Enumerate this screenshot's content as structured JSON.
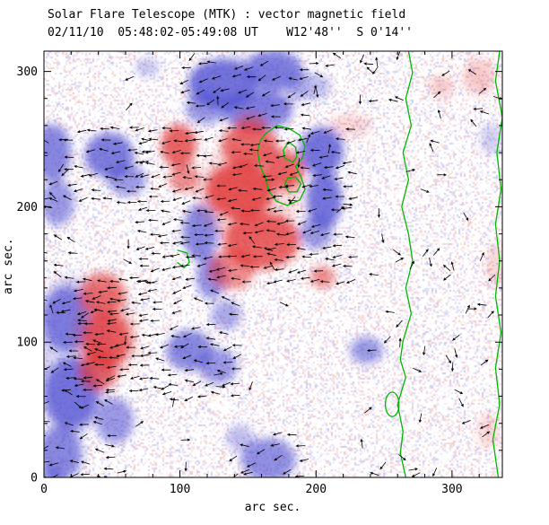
{
  "header": {
    "title": "Solar Flare Telescope (MTK) : vector magnetic field",
    "subtitle": "02/11/10  05:48:02-05:49:08 UT    W12'48''  S 0'14''"
  },
  "chart_data": {
    "type": "heatmap",
    "title": "Solar Flare Telescope (MTK) : vector magnetic field",
    "subtitle": "02/11/10  05:48:02-05:49:08 UT    W12'48''  S 0'14''",
    "xlabel": "arc sec.",
    "ylabel": "arc sec.",
    "xlim": [
      0,
      337
    ],
    "ylim": [
      0,
      315
    ],
    "xticks": [
      0,
      100,
      200,
      300
    ],
    "yticks": [
      0,
      100,
      200,
      300
    ],
    "minor_tick_step": 20,
    "grid": false,
    "legend": "none",
    "colors": {
      "positive": "#e03030",
      "negative": "#4848d0",
      "contour": "#00b800",
      "vector": "#000000",
      "axis": "#000000",
      "background": "#ffffff"
    },
    "blobs": [
      [
        -1,
        131,
        291,
        25,
        18,
        0.7
      ],
      [
        -1,
        169,
        301,
        21,
        15,
        0.65
      ],
      [
        -1,
        157,
        271,
        26,
        15,
        0.65
      ],
      [
        -1,
        119,
        273,
        15,
        12,
        0.55
      ],
      [
        -1,
        195,
        289,
        16,
        10,
        0.35
      ],
      [
        -1,
        150,
        290,
        45,
        22,
        0.2
      ],
      [
        -1,
        204,
        241,
        16,
        18,
        0.75
      ],
      [
        -1,
        206,
        205,
        13,
        21,
        0.75
      ],
      [
        -1,
        200,
        181,
        12,
        12,
        0.55
      ],
      [
        -1,
        48,
        238,
        18,
        17,
        0.7
      ],
      [
        -1,
        61,
        220,
        14,
        12,
        0.55
      ],
      [
        -1,
        6,
        240,
        14,
        21,
        0.65
      ],
      [
        -1,
        10,
        203,
        12,
        17,
        0.55
      ],
      [
        -1,
        115,
        181,
        13,
        21,
        0.65
      ],
      [
        -1,
        123,
        148,
        11,
        16,
        0.6
      ],
      [
        -1,
        134,
        120,
        11,
        11,
        0.45
      ],
      [
        -1,
        16,
        117,
        17,
        24,
        0.65
      ],
      [
        -1,
        20,
        62,
        20,
        26,
        0.7
      ],
      [
        -1,
        12,
        18,
        16,
        20,
        0.65
      ],
      [
        -1,
        52,
        42,
        14,
        17,
        0.55
      ],
      [
        -1,
        20,
        90,
        30,
        60,
        0.2
      ],
      [
        -1,
        107,
        94,
        17,
        15,
        0.65
      ],
      [
        -1,
        128,
        82,
        14,
        13,
        0.55
      ],
      [
        -1,
        165,
        13,
        20,
        16,
        0.6
      ],
      [
        -1,
        144,
        29,
        10,
        10,
        0.35
      ],
      [
        -1,
        237,
        94,
        12,
        10,
        0.55
      ],
      [
        -1,
        329,
        250,
        8,
        12,
        0.25
      ],
      [
        -1,
        5,
        0,
        9,
        7,
        0.5
      ],
      [
        -1,
        76,
        303,
        9,
        7,
        0.3
      ],
      [
        1,
        151,
        245,
        21,
        16,
        0.7
      ],
      [
        1,
        144,
        212,
        25,
        21,
        0.8
      ],
      [
        1,
        160,
        175,
        28,
        21,
        0.75
      ],
      [
        1,
        138,
        154,
        17,
        15,
        0.55
      ],
      [
        1,
        177,
        227,
        14,
        15,
        0.7
      ],
      [
        1,
        152,
        261,
        12,
        8,
        0.45
      ],
      [
        1,
        150,
        210,
        40,
        35,
        0.15
      ],
      [
        1,
        99,
        245,
        13,
        16,
        0.75
      ],
      [
        1,
        103,
        221,
        11,
        10,
        0.55
      ],
      [
        1,
        43,
        135,
        17,
        16,
        0.65
      ],
      [
        1,
        46,
        102,
        18,
        21,
        0.75
      ],
      [
        1,
        40,
        79,
        14,
        15,
        0.65
      ],
      [
        1,
        45,
        105,
        25,
        35,
        0.15
      ],
      [
        1,
        205,
        148,
        9,
        8,
        0.55
      ],
      [
        1,
        292,
        289,
        9,
        8,
        0.25
      ],
      [
        1,
        320,
        296,
        12,
        13,
        0.25
      ],
      [
        1,
        332,
        157,
        7,
        17,
        0.2
      ],
      [
        1,
        327,
        34,
        8,
        13,
        0.2
      ],
      [
        1,
        225,
        260,
        16,
        8,
        0.18
      ]
    ],
    "contours": [
      {
        "name": "main-neutral-line",
        "closed": false,
        "points": [
          [
            268,
            315
          ],
          [
            271,
            299
          ],
          [
            266,
            280
          ],
          [
            270,
            260
          ],
          [
            264,
            240
          ],
          [
            268,
            220
          ],
          [
            263,
            200
          ],
          [
            268,
            180
          ],
          [
            271,
            160
          ],
          [
            266,
            140
          ],
          [
            270,
            121
          ],
          [
            264,
            101
          ],
          [
            262,
            87
          ],
          [
            266,
            74
          ],
          [
            260,
            54
          ],
          [
            264,
            34
          ],
          [
            262,
            18
          ],
          [
            266,
            0
          ]
        ]
      },
      {
        "name": "right-edge-line",
        "closed": false,
        "points": [
          [
            335,
            315
          ],
          [
            332,
            293
          ],
          [
            337,
            266
          ],
          [
            333,
            240
          ],
          [
            336,
            213
          ],
          [
            332,
            187
          ],
          [
            335,
            160
          ],
          [
            332,
            134
          ],
          [
            336,
            107
          ],
          [
            332,
            81
          ],
          [
            335,
            54
          ],
          [
            330,
            28
          ],
          [
            334,
            0
          ]
        ]
      },
      {
        "name": "central-outer",
        "closed": true,
        "points": [
          [
            163,
            254
          ],
          [
            171,
            260
          ],
          [
            180,
            258
          ],
          [
            188,
            253
          ],
          [
            192,
            245
          ],
          [
            190,
            236
          ],
          [
            185,
            230
          ],
          [
            189,
            222
          ],
          [
            192,
            213
          ],
          [
            188,
            205
          ],
          [
            179,
            201
          ],
          [
            171,
            204
          ],
          [
            165,
            212
          ],
          [
            163,
            221
          ],
          [
            159,
            230
          ],
          [
            157,
            241
          ],
          [
            159,
            249
          ]
        ]
      },
      {
        "name": "central-inner-1",
        "closed": true,
        "points": [
          [
            180,
            248
          ],
          [
            185,
            244
          ],
          [
            186,
            237
          ],
          [
            183,
            233
          ],
          [
            177,
            236
          ],
          [
            176,
            242
          ]
        ]
      },
      {
        "name": "central-inner-2",
        "closed": true,
        "points": [
          [
            179,
            221
          ],
          [
            185,
            222
          ],
          [
            189,
            217
          ],
          [
            186,
            211
          ],
          [
            180,
            211
          ],
          [
            177,
            216
          ]
        ]
      },
      {
        "name": "small-loop",
        "ellipse": true,
        "cx": 256,
        "cy": 54,
        "rx": 5,
        "ry": 9
      },
      {
        "name": "small-hook",
        "closed": false,
        "points": [
          [
            98,
            168
          ],
          [
            105,
            166
          ],
          [
            107,
            159
          ],
          [
            103,
            155
          ],
          [
            98,
            159
          ]
        ]
      }
    ],
    "vector_field": {
      "seed": 21,
      "segment_length": 6.5,
      "grids": [
        {
          "x": [
            72,
            228
          ],
          "y": [
            146,
            264
          ],
          "step": 8.5,
          "angle": 185,
          "jitter": 18,
          "prob": 0.88
        },
        {
          "x": [
            18,
            82
          ],
          "y": [
            66,
            148
          ],
          "step": 8,
          "angle": 182,
          "jitter": 15,
          "prob": 0.85
        },
        {
          "x": [
            106,
            198
          ],
          "y": [
            266,
            310
          ],
          "step": 9.5,
          "angle": 193,
          "jitter": 25,
          "prob": 0.8
        },
        {
          "x": [
            28,
            78
          ],
          "y": [
            204,
            258
          ],
          "step": 9,
          "angle": 185,
          "jitter": 20,
          "prob": 0.8
        },
        {
          "x": [
            0,
            20
          ],
          "y": [
            148,
            252
          ],
          "step": 10,
          "angle": 172,
          "jitter": 30,
          "prob": 0.7
        },
        {
          "x": [
            0,
            56
          ],
          "y": [
            2,
            136
          ],
          "step": 10,
          "angle": 181,
          "jitter": 35,
          "prob": 0.65
        },
        {
          "x": [
            88,
            146
          ],
          "y": [
            60,
            112
          ],
          "step": 9,
          "angle": 186,
          "jitter": 25,
          "prob": 0.75
        },
        {
          "x": [
            140,
            196
          ],
          "y": [
            2,
            34
          ],
          "step": 10,
          "angle": 190,
          "jitter": 30,
          "prob": 0.7
        },
        {
          "x": [
            96,
            146
          ],
          "y": [
            112,
            146
          ],
          "step": 9,
          "angle": 184,
          "jitter": 28,
          "prob": 0.6
        }
      ],
      "scatter": [
        {
          "count": 62,
          "x": [
            232,
            335
          ],
          "y": [
            2,
            313
          ]
        },
        {
          "count": 40,
          "x": [
            2,
            230
          ],
          "y": [
            2,
            313
          ]
        },
        {
          "count": 12,
          "x": [
            198,
            262
          ],
          "y": [
            276,
            313
          ]
        }
      ]
    },
    "noise": {
      "seed": 13,
      "cell": 2,
      "density": 0.42,
      "alpha": 0.3
    }
  }
}
